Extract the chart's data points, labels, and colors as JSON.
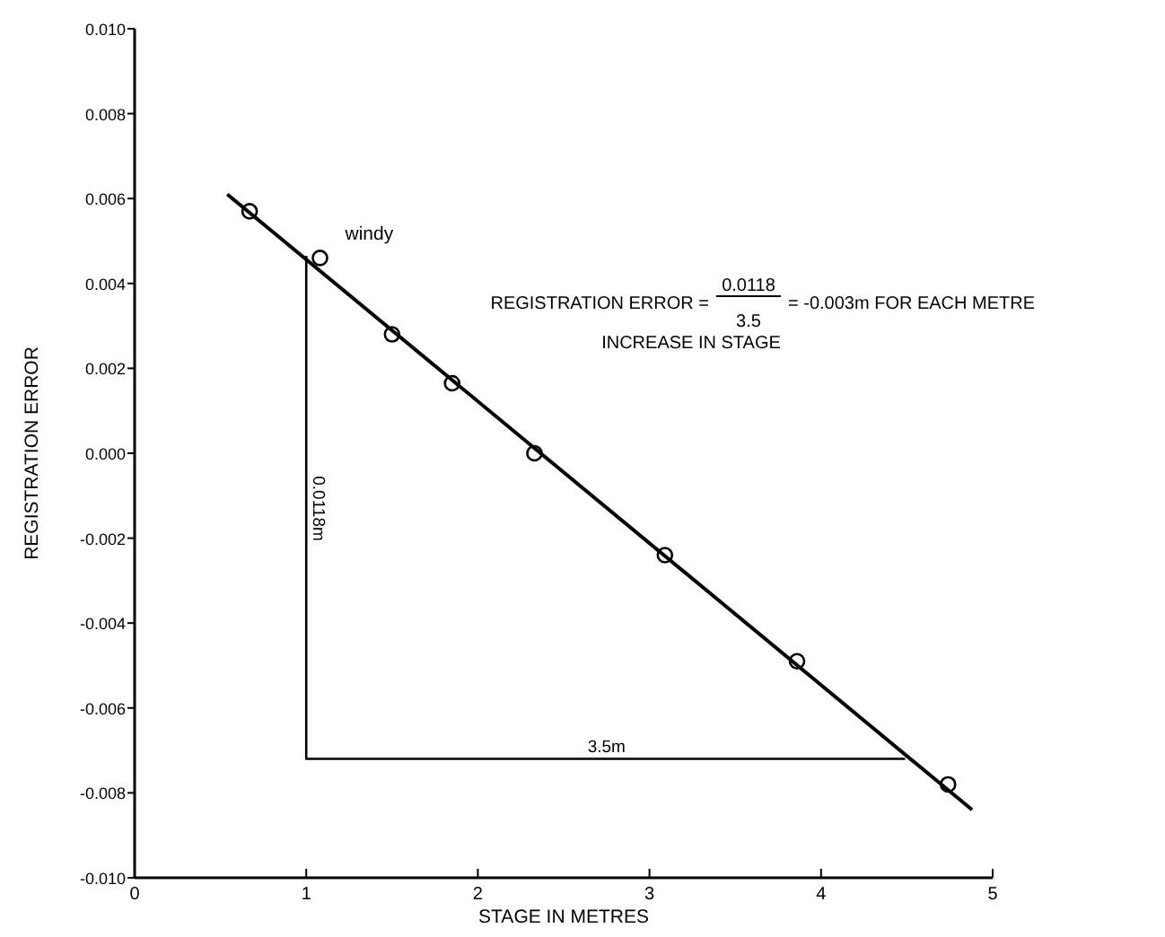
{
  "chart_data": {
    "type": "scatter",
    "xlabel": "STAGE IN METRES",
    "ylabel": "REGISTRATION ERROR",
    "xlim": [
      0,
      5
    ],
    "xticks": [
      0,
      1,
      2,
      3,
      4,
      5
    ],
    "ylim": [
      -0.01,
      0.01
    ],
    "yticks": [
      {
        "value": -0.01,
        "label": "-0.010"
      },
      {
        "value": -0.008,
        "label": "-0.008"
      },
      {
        "value": -0.006,
        "label": "-0.006"
      },
      {
        "value": -0.004,
        "label": "-0.004"
      },
      {
        "value": -0.002,
        "label": "-0.002"
      },
      {
        "value": 0,
        "label": "0.000"
      },
      {
        "value": 0.002,
        "label": "0.002"
      },
      {
        "value": 0.004,
        "label": "0.004"
      },
      {
        "value": 0.006,
        "label": "0.006"
      },
      {
        "value": 0.008,
        "label": "0.008"
      },
      {
        "value": 0.01,
        "label": "0.010"
      }
    ],
    "grid": false,
    "marker": "circle",
    "series": [
      {
        "color": "#000000",
        "x": [
          0.67,
          1.08,
          1.5,
          1.85,
          2.33,
          3.09,
          3.86,
          4.74
        ],
        "values": [
          0.0057,
          0.0046,
          0.0028,
          0.00165,
          0.0,
          -0.0024,
          -0.0049,
          -0.0078
        ]
      },
      {
        "type": "line",
        "marker": "none",
        "color": "#000000",
        "line_style": "solid",
        "x": [
          0.54,
          4.88
        ],
        "values": [
          0.0061,
          -0.0084
        ]
      },
      {
        "type": "line",
        "marker": "none",
        "color": "#000000",
        "line_style": "solid",
        "x": [
          1,
          1,
          4.49
        ],
        "values": [
          0.00465,
          -0.0072,
          -0.0072
        ]
      }
    ],
    "annotations": [
      {
        "text": "windy",
        "x": 1.08,
        "y": 0.0046
      },
      {
        "text": "0.0118m",
        "x": 1,
        "y": -0.0013
      },
      {
        "text": "3.5m",
        "x": 2.75,
        "y": -0.0072
      },
      "REGISTRATION ERROR =",
      "0.0118",
      "3.5",
      "= -0.003m FOR EACH METRE",
      "INCREASE IN STAGE"
    ]
  }
}
